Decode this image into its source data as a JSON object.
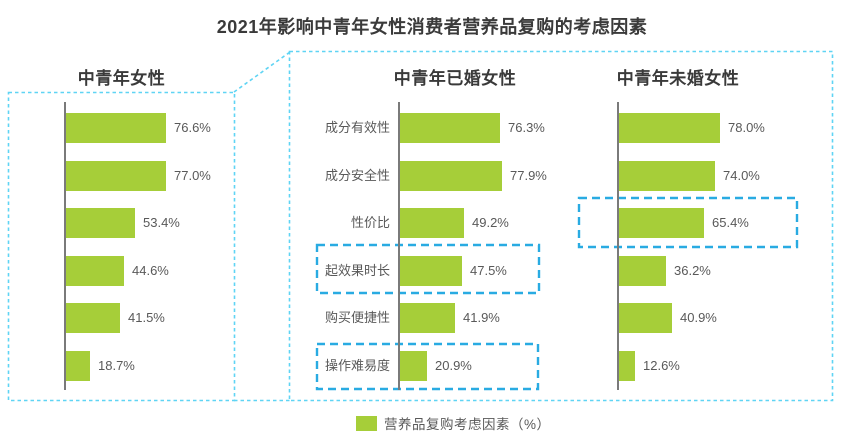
{
  "title": "2021年影响中青年女性消费者营养品复购的考虑因素",
  "legend": {
    "label": "营养品复购考虑因素（%）"
  },
  "colors": {
    "bar": "#a6ce39",
    "axis": "#7a7a7a",
    "outer_box": "#5fd4f4",
    "highlight_box": "#29abe2",
    "title_text": "#3a3a3a",
    "label_text": "#595959"
  },
  "chart_data": {
    "type": "bar",
    "orientation": "horizontal",
    "unit": "%",
    "xlim": [
      0,
      100
    ],
    "grid": false,
    "legend_position": "bottom-center",
    "categories": [
      "成分有效性",
      "成分安全性",
      "性价比",
      "起效果时长",
      "购买便捷性",
      "操作难易度"
    ],
    "panels": [
      {
        "title": "中青年女性",
        "show_category_labels": false,
        "values": [
          76.6,
          77.0,
          53.4,
          44.6,
          41.5,
          18.7
        ],
        "value_labels": [
          "76.6%",
          "77.0%",
          "53.4%",
          "44.6%",
          "41.5%",
          "18.7%"
        ],
        "highlighted_rows": []
      },
      {
        "title": "中青年已婚女性",
        "show_category_labels": true,
        "values": [
          76.3,
          77.9,
          49.2,
          47.5,
          41.9,
          20.9
        ],
        "value_labels": [
          "76.3%",
          "77.9%",
          "49.2%",
          "47.5%",
          "41.9%",
          "20.9%"
        ],
        "highlighted_rows": [
          3,
          5
        ]
      },
      {
        "title": "中青年未婚女性",
        "show_category_labels": false,
        "values": [
          78.0,
          74.0,
          65.4,
          36.2,
          40.9,
          12.6
        ],
        "value_labels": [
          "78.0%",
          "74.0%",
          "65.4%",
          "36.2%",
          "40.9%",
          "12.6%"
        ],
        "highlighted_rows": [
          2
        ]
      }
    ]
  }
}
